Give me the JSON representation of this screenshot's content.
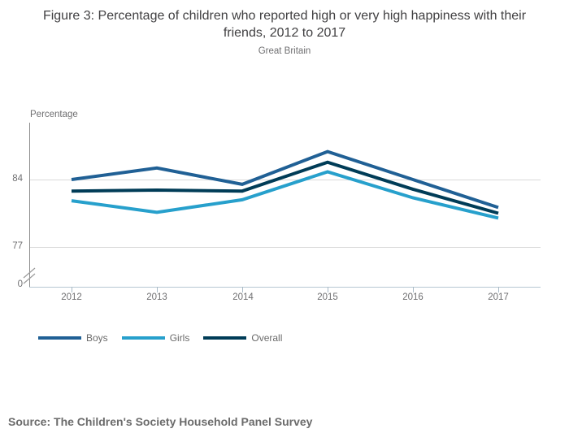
{
  "figure": {
    "title": "Figure 3: Percentage of children who reported high or very high happiness with their friends, 2012 to 2017",
    "subtitle": "Great Britain",
    "source": "Source: The Children's Society Household Panel Survey"
  },
  "chart_data": {
    "type": "line",
    "categories": [
      "2012",
      "2013",
      "2014",
      "2015",
      "2016",
      "2017"
    ],
    "series": [
      {
        "name": "Boys",
        "color": "#206095",
        "values": [
          84.0,
          85.2,
          83.5,
          86.9,
          84.0,
          81.1
        ]
      },
      {
        "name": "Girls",
        "color": "#27A0CC",
        "values": [
          81.8,
          80.6,
          81.9,
          84.8,
          82.1,
          80.0
        ]
      },
      {
        "name": "Overall",
        "color": "#003C57",
        "values": [
          82.8,
          82.9,
          82.8,
          85.8,
          83.0,
          80.5
        ]
      }
    ],
    "xlabel": "",
    "ylabel": "Percentage",
    "yticks": [
      "84",
      "77",
      "0"
    ],
    "ytick_values": [
      84,
      77,
      0
    ],
    "axis_break": true,
    "ylim_display": [
      77,
      91
    ],
    "grid": "horizontal",
    "legend_position": "bottom-left"
  }
}
